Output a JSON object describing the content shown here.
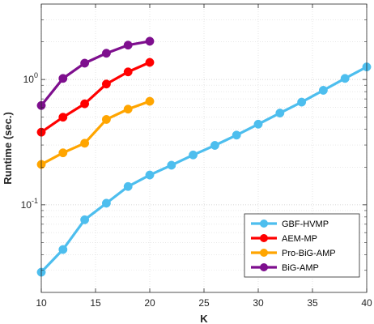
{
  "chart_data": {
    "type": "line",
    "title": "",
    "xlabel": "K",
    "ylabel": "Runtime (sec.)",
    "xlim": [
      10,
      40
    ],
    "ylim": [
      0.02,
      4
    ],
    "yscale": "log",
    "grid": true,
    "x_ticks": [
      10,
      15,
      20,
      25,
      30,
      35,
      40
    ],
    "y_ticks": [
      {
        "value": 0.1,
        "base": "10",
        "exp": "-1"
      },
      {
        "value": 1,
        "base": "10",
        "exp": "0"
      }
    ],
    "legend_position": "bottom-right",
    "series": [
      {
        "name": "GBF-HVMP",
        "color": "#4DBEEE",
        "x": [
          10,
          12,
          14,
          16,
          18,
          20,
          22,
          24,
          26,
          28,
          30,
          32,
          34,
          36,
          38,
          40
        ],
        "y": [
          0.029,
          0.044,
          0.076,
          0.103,
          0.14,
          0.173,
          0.207,
          0.25,
          0.298,
          0.36,
          0.44,
          0.54,
          0.66,
          0.82,
          1.02,
          1.26
        ]
      },
      {
        "name": "AEM-MP",
        "color": "#FF0000",
        "x": [
          10,
          12,
          14,
          16,
          18,
          20
        ],
        "y": [
          0.38,
          0.5,
          0.64,
          0.92,
          1.15,
          1.37
        ]
      },
      {
        "name": "Pro-BiG-AMP",
        "color": "#FFA500",
        "x": [
          10,
          12,
          14,
          16,
          18,
          20
        ],
        "y": [
          0.21,
          0.26,
          0.31,
          0.48,
          0.58,
          0.67
        ]
      },
      {
        "name": "BiG-AMP",
        "color": "#7E0F8E",
        "x": [
          10,
          12,
          14,
          16,
          18,
          20
        ],
        "y": [
          0.62,
          1.02,
          1.35,
          1.62,
          1.88,
          2.02
        ]
      }
    ]
  }
}
